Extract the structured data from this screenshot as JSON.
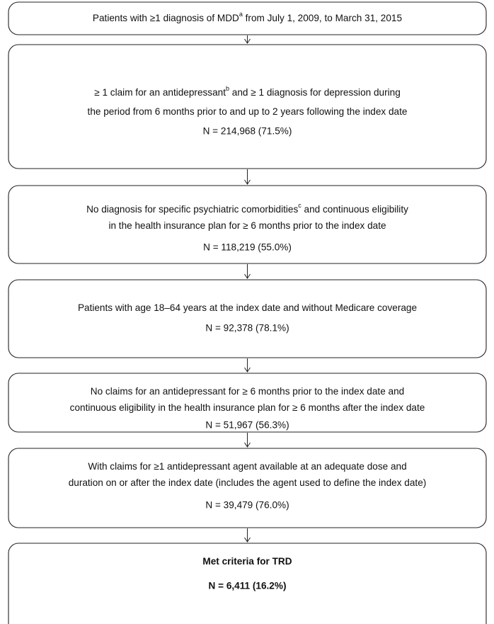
{
  "nodes": [
    {
      "lines": [
        [
          "Patients with ≥1 diagnosis of MDD",
          {
            "sup": "a"
          },
          " from July 1, 2009, to March 31, 2015"
        ]
      ]
    },
    {
      "lines": [
        [
          "≥ 1 claim for an antidepressant",
          {
            "sup": "b"
          },
          " and ≥ 1 diagnosis for depression during"
        ],
        [
          "the period from 6 months prior to and up to 2 years following the index date"
        ]
      ],
      "count": "N = 214,968 (71.5%)"
    },
    {
      "lines": [
        [
          "No diagnosis for specific psychiatric comorbidities",
          {
            "sup": "c"
          },
          " and continuous eligibility"
        ],
        [
          "in the health insurance plan for ≥ 6 months prior to the index date"
        ]
      ],
      "count": "N = 118,219 (55.0%)"
    },
    {
      "lines": [
        [
          "Patients with age 18–64 years at the index date and without Medicare coverage"
        ]
      ],
      "count": "N = 92,378 (78.1%)"
    },
    {
      "lines": [
        [
          "No claims for an antidepressant for ≥ 6 months prior to the index date and"
        ],
        [
          "continuous eligibility in the health insurance plan for ≥ 6 months after the index date"
        ]
      ],
      "count": "N = 51,967 (56.3%)"
    },
    {
      "lines": [
        [
          "With claims for ≥1 antidepressant agent available at an adequate dose and"
        ],
        [
          "duration on or after the index date (includes the agent used to define the index date)"
        ]
      ],
      "count": "N = 39,479 (76.0%)"
    },
    {
      "lines": [
        [
          "Met criteria for TRD"
        ]
      ],
      "count": "N = 6,411 (16.2%)",
      "bold": true
    }
  ]
}
